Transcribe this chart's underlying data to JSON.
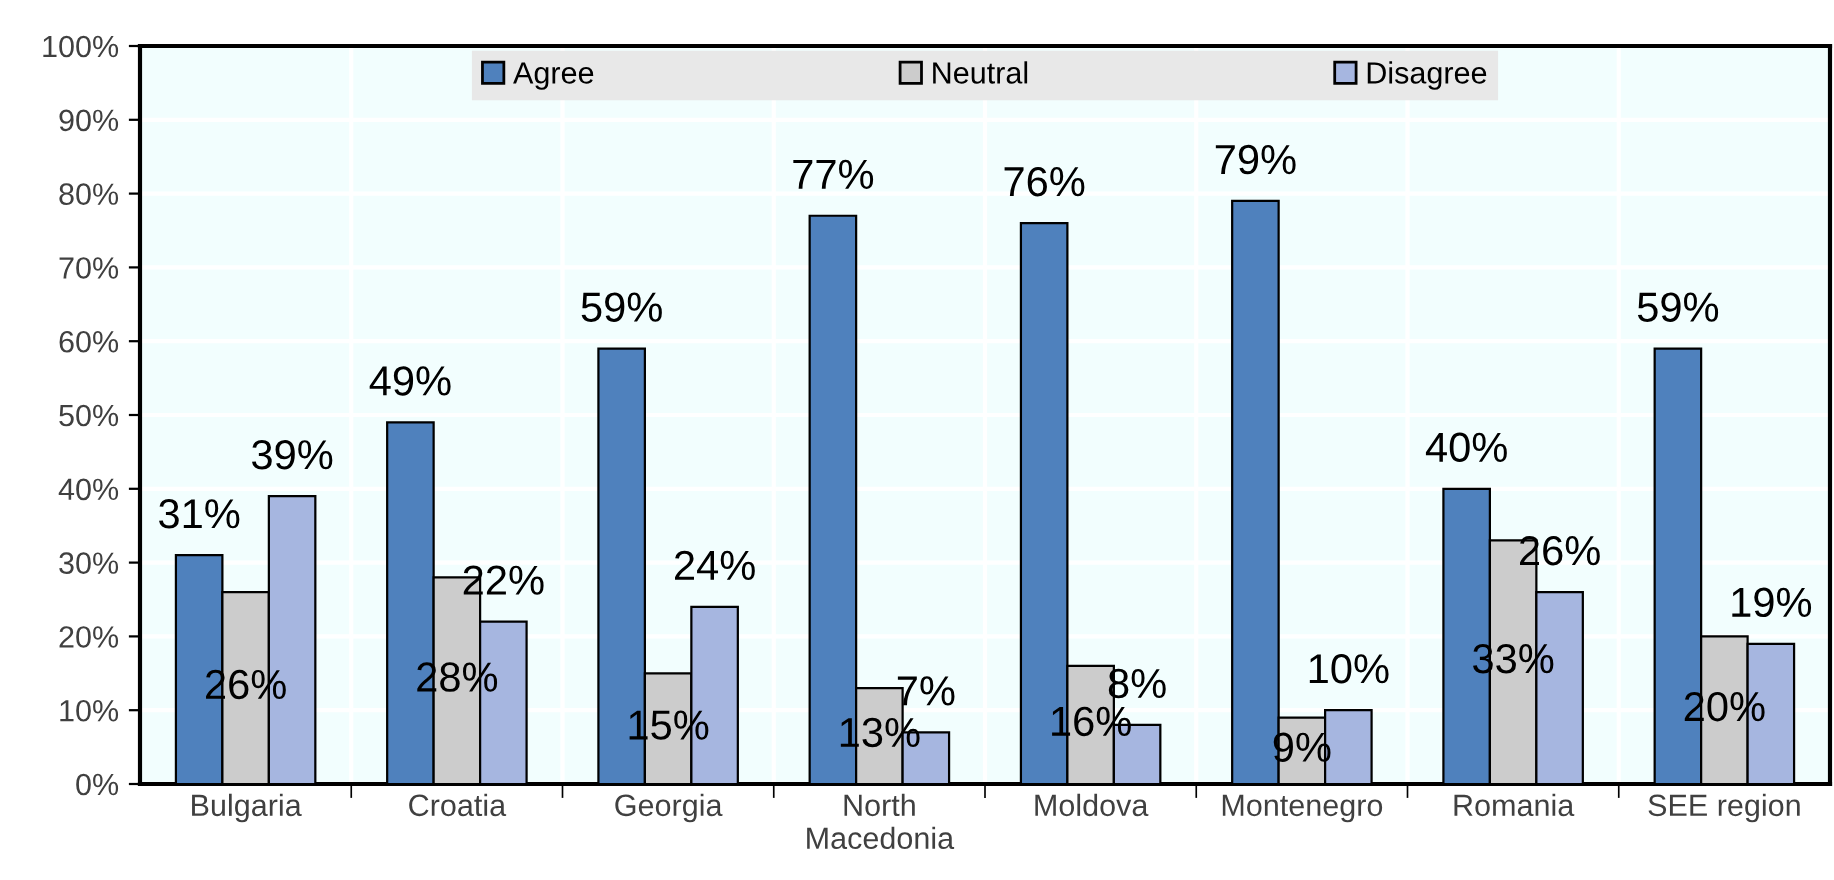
{
  "chart_data": {
    "type": "bar",
    "categories": [
      "Bulgaria",
      "Croatia",
      "Georgia",
      "North\nMacedonia",
      "Moldova",
      "Montenegro",
      "Romania",
      "SEE region"
    ],
    "series": [
      {
        "name": "Agree",
        "color": "#4f81bd",
        "values": [
          31,
          49,
          59,
          77,
          76,
          79,
          40,
          59
        ],
        "value_labels": [
          "31%",
          "49%",
          "59%",
          "77%",
          "76%",
          "79%",
          "40%",
          "59%"
        ]
      },
      {
        "name": "Neutral",
        "color": "#cccccc",
        "values": [
          26,
          28,
          15,
          13,
          16,
          9,
          33,
          20
        ],
        "value_labels": [
          "26%",
          "28%",
          "15%",
          "13%",
          "16%",
          "9%",
          "33%",
          "20%"
        ]
      },
      {
        "name": "Disagree",
        "color": "#a6b6e0",
        "values": [
          39,
          22,
          24,
          7,
          8,
          10,
          26,
          19
        ],
        "value_labels": [
          "39%",
          "22%",
          "24%",
          "7%",
          "8%",
          "10%",
          "26%",
          "19%"
        ]
      }
    ],
    "ylim": [
      0,
      100
    ],
    "yticks": [
      {
        "value": 0,
        "label": "0%"
      },
      {
        "value": 10,
        "label": "10%"
      },
      {
        "value": 20,
        "label": "20%"
      },
      {
        "value": 30,
        "label": "30%"
      },
      {
        "value": 40,
        "label": "40%"
      },
      {
        "value": 50,
        "label": "50%"
      },
      {
        "value": 60,
        "label": "60%"
      },
      {
        "value": 70,
        "label": "70%"
      },
      {
        "value": 80,
        "label": "80%"
      },
      {
        "value": 90,
        "label": "90%"
      },
      {
        "value": 100,
        "label": "100%"
      }
    ],
    "grid": true,
    "legend": "top"
  }
}
